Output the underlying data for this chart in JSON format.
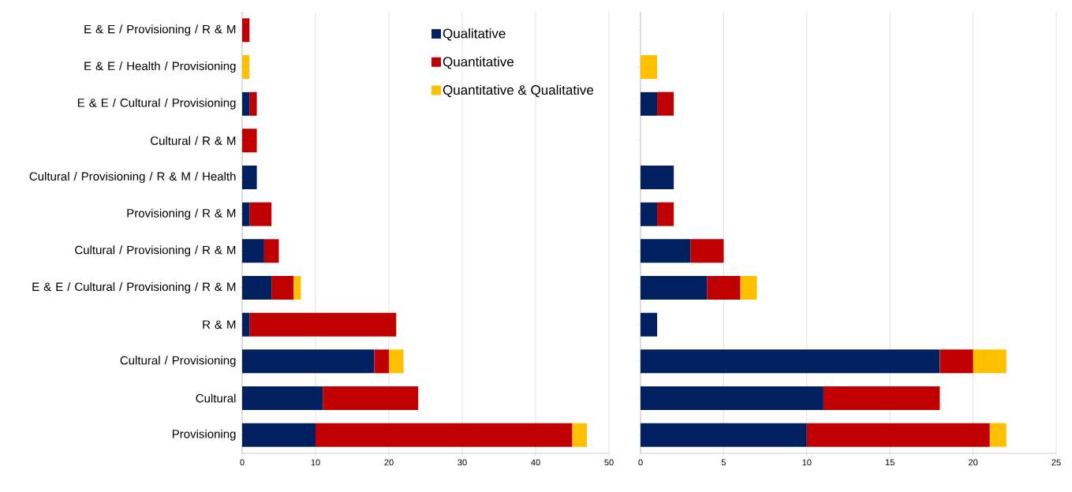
{
  "chart_data": [
    {
      "type": "bar",
      "orientation": "horizontal",
      "stacked": true,
      "grid": "x",
      "legend": "top right",
      "categories": [
        "E & E / Provisioning / R & M",
        "E & E / Health / Provisioning",
        "E & E / Cultural / Provisioning",
        "Cultural / R & M",
        "Cultural / Provisioning / R & M / Health",
        "Provisioning / R & M",
        "Cultural / Provisioning / R & M",
        "E & E / Cultural / Provisioning / R & M",
        "R & M",
        "Cultural / Provisioning",
        "Cultural",
        "Provisioning"
      ],
      "xlim": [
        0,
        50
      ],
      "xticks": [
        0,
        10,
        20,
        30,
        40,
        50
      ],
      "series": [
        {
          "name": "Qualitative",
          "color": "#002060",
          "values": [
            0,
            0,
            1,
            0,
            2,
            1,
            3,
            4,
            1,
            18,
            11,
            10
          ]
        },
        {
          "name": "Quantitative",
          "color": "#c00000",
          "values": [
            1,
            0,
            1,
            2,
            0,
            3,
            2,
            3,
            20,
            2,
            13,
            35
          ]
        },
        {
          "name": "Quantitative & Qualitative",
          "color": "#ffc000",
          "values": [
            0,
            1,
            0,
            0,
            0,
            0,
            0,
            1,
            0,
            2,
            0,
            2
          ]
        }
      ]
    },
    {
      "type": "bar",
      "orientation": "horizontal",
      "stacked": true,
      "grid": "x",
      "categories": [
        null,
        null,
        null,
        null,
        null,
        null,
        null,
        null,
        null,
        null,
        null,
        null
      ],
      "xlim": [
        0,
        25
      ],
      "xticks": [
        0,
        5,
        10,
        15,
        20,
        25
      ],
      "series": [
        {
          "color": "#002060",
          "values": [
            0,
            0,
            1,
            0,
            2,
            1,
            3,
            4,
            1,
            18,
            11,
            10
          ]
        },
        {
          "color": "#c00000",
          "values": [
            0,
            0,
            1,
            0,
            0,
            1,
            2,
            2,
            0,
            2,
            7,
            11
          ]
        },
        {
          "color": "#ffc000",
          "values": [
            0,
            1,
            0,
            0,
            0,
            0,
            0,
            1,
            0,
            2,
            0,
            1
          ]
        }
      ]
    }
  ]
}
